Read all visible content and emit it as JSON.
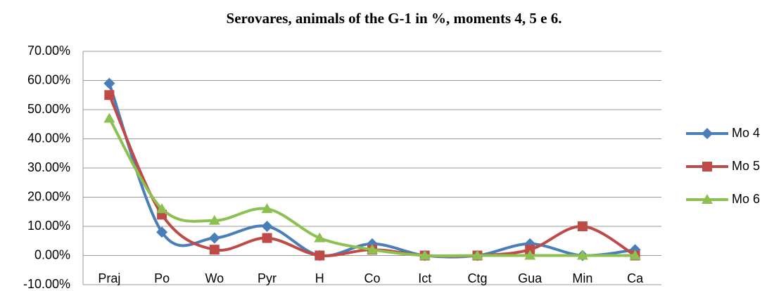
{
  "chart_data": {
    "type": "line",
    "smooth": true,
    "title": "Serovares, animals of the G-1 in %, moments 4, 5 e 6.",
    "categories": [
      "Praj",
      "Po",
      "Wo",
      "Pyr",
      "H",
      "Co",
      "Ict",
      "Ctg",
      "Gua",
      "Min",
      "Ca"
    ],
    "series": [
      {
        "name": "Mo 4",
        "color": "#4a7ebb",
        "marker": "diamond",
        "values": [
          59,
          8,
          6,
          10,
          0,
          4,
          0,
          0,
          4,
          0,
          2
        ]
      },
      {
        "name": "Mo 5",
        "color": "#be4b48",
        "marker": "square",
        "values": [
          55,
          14,
          2,
          6,
          0,
          2,
          0,
          0,
          2,
          10,
          0
        ]
      },
      {
        "name": "Mo 6",
        "color": "#8cc152",
        "marker": "triangle",
        "values": [
          47,
          16,
          12,
          16,
          6,
          2,
          0,
          0,
          0,
          0,
          0
        ]
      }
    ],
    "ylim": [
      -10,
      70
    ],
    "yticks": [
      {
        "value": -10,
        "label": "-10.00%"
      },
      {
        "value": 0,
        "label": "0.00%"
      },
      {
        "value": 10,
        "label": "10.00%"
      },
      {
        "value": 20,
        "label": "20.00%"
      },
      {
        "value": 30,
        "label": "30.00%"
      },
      {
        "value": 40,
        "label": "40.00%"
      },
      {
        "value": 50,
        "label": "50.00%"
      },
      {
        "value": 60,
        "label": "60.00%"
      },
      {
        "value": 70,
        "label": "70.00%"
      }
    ],
    "grid": true,
    "legend": "right"
  }
}
